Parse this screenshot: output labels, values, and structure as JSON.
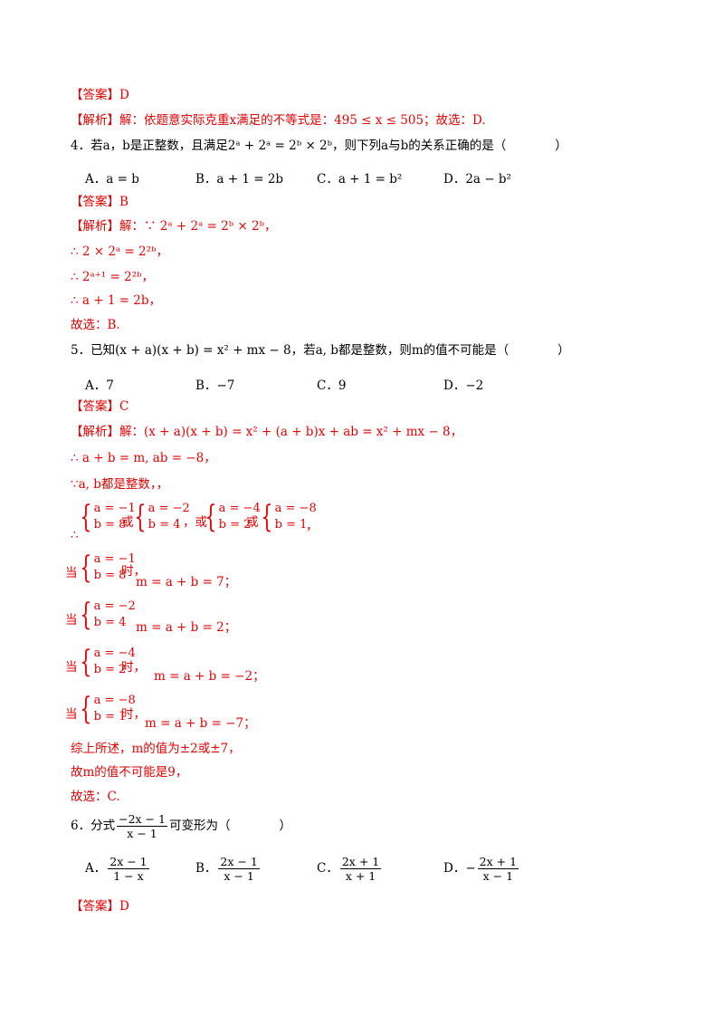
{
  "q3": {
    "answer": "【答案】D",
    "analysis_label": "【解析】",
    "analysis_text": "解：依题意实际克重x满足的不等式是：495 ≤ x ≤ 505；故选：D."
  },
  "q4": {
    "stem": "4．若a，b是正整数，且满足2ᵃ + 2ᵃ = 2ᵇ × 2ᵇ，则下列a与b的关系正确的是（　　　　）",
    "options": [
      "A．a = b",
      "B．a + 1 = 2b",
      "C．a + 1 = b²",
      "D．2a − b²"
    ],
    "answer": "【答案】B",
    "analysis_label": "【解析】",
    "steps": [
      "解：∵ 2ᵃ + 2ᵃ = 2ᵇ × 2ᵇ，",
      "∴ 2 × 2ᵃ = 2²ᵇ，",
      "∴ 2ᵃ⁺¹ = 2²ᵇ，",
      "∴ a + 1 = 2b，",
      "故选：B."
    ]
  },
  "q5": {
    "stem": "5．已知(x + a)(x + b) = x² + mx − 8，若a, b都是整数，则m的值不可能是（　　　　）",
    "options": [
      "A．7",
      "B．−7",
      "C．9",
      "D．−2"
    ],
    "answer": "【答案】C",
    "analysis_label": "【解析】",
    "step1": "解：(x + a)(x + b) = x² + (a + b)x + ab = x² + mx − 8，",
    "step2": "∴ a + b = m, ab = −8，",
    "step3": "∵a, b都是整数，，",
    "therefore": "∴",
    "systems": [
      {
        "a": "a = −1",
        "b": "b = 8"
      },
      {
        "a": "a = −2",
        "b": "b = 4"
      },
      {
        "a": "a = −4",
        "b": "b = 2"
      },
      {
        "a": "a = −8",
        "b": "b = 1"
      }
    ],
    "or1": "或",
    "or2": "，或",
    "or3": "或",
    "end_comma": "，",
    "when": "当",
    "shi": "时，",
    "cases": [
      {
        "a": "a = −1",
        "b": "b = 8",
        "m": "m = a + b = 7；"
      },
      {
        "a": "a = −2",
        "b": "b = 4",
        "m": "m = a + b = 2；"
      },
      {
        "a": "a = −4",
        "b": "b = 2",
        "m": "m = a + b = −2；"
      },
      {
        "a": "a = −8",
        "b": "b = 1",
        "m": "m = a + b = −7；"
      }
    ],
    "summary1": "综上所述，m的值为±2或±7，",
    "summary2": "故m的值不可能是9，",
    "choose": "故选：C."
  },
  "q6": {
    "stem_prefix": "6．分式",
    "stem_num": "−2x − 1",
    "stem_den": "x − 1",
    "stem_suffix": "可变形为（　　　　）",
    "options": [
      {
        "label": "A．",
        "sign": "",
        "num": "2x − 1",
        "den": "1 − x"
      },
      {
        "label": "B．",
        "sign": "",
        "num": "2x − 1",
        "den": "x − 1"
      },
      {
        "label": "C．",
        "sign": "",
        "num": "2x + 1",
        "den": "x + 1"
      },
      {
        "label": "D．",
        "sign": "−",
        "num": "2x + 1",
        "den": "x − 1"
      }
    ],
    "answer": "【答案】D"
  }
}
